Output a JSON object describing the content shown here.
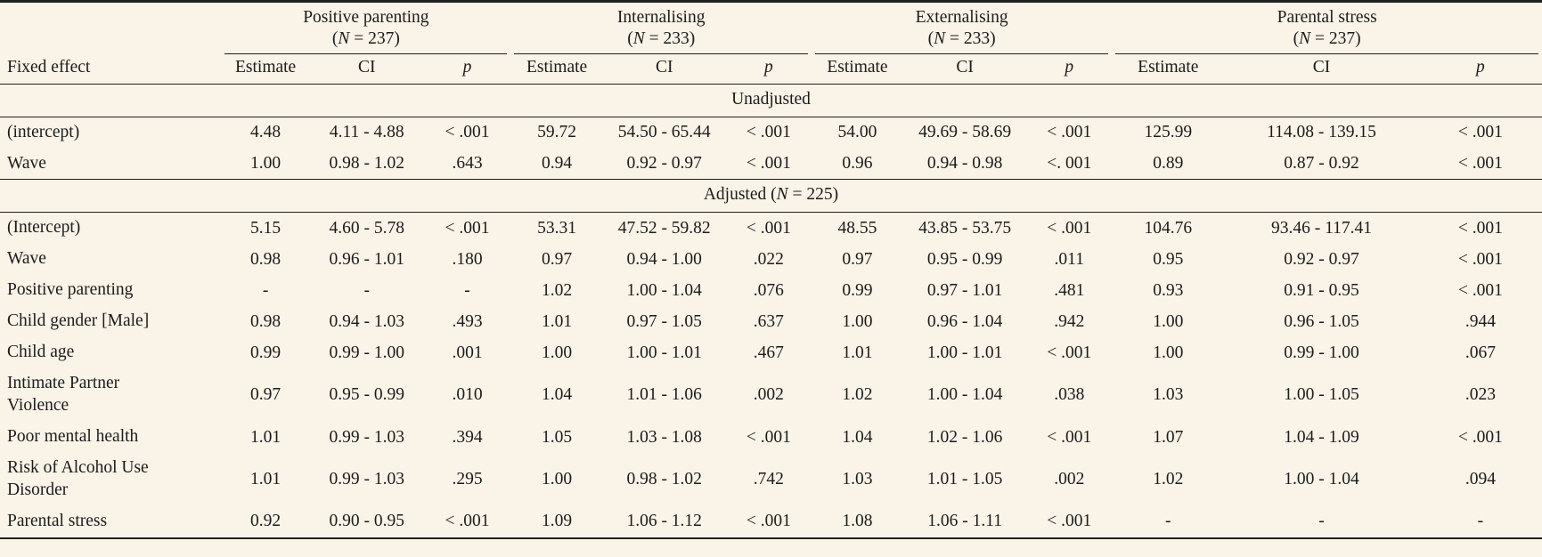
{
  "page": {
    "background_color": "#f9f3e8",
    "text_color": "#1c1c1c",
    "rule_color": "#1f1f1f"
  },
  "table": {
    "fixed_effect_header": "Fixed effect",
    "sub_headers": [
      "Estimate",
      "CI",
      "p"
    ],
    "col_groups": [
      {
        "label": "Positive parenting",
        "n": "(N = 237)"
      },
      {
        "label": "Internalising",
        "n": "(N = 233)"
      },
      {
        "label": "Externalising",
        "n": "(N = 233)"
      },
      {
        "label": "Parental stress",
        "n": "(N = 237)"
      }
    ],
    "sections": [
      {
        "title": "Unadjusted",
        "rows": [
          {
            "label": "(intercept)",
            "cells": [
              "4.48",
              "4.11 - 4.88",
              "< .001",
              "59.72",
              "54.50 - 65.44",
              "< .001",
              "54.00",
              "49.69 - 58.69",
              "< .001",
              "125.99",
              "114.08 - 139.15",
              "< .001"
            ]
          },
          {
            "label": "Wave",
            "cells": [
              "1.00",
              "0.98 - 1.02",
              ".643",
              "0.94",
              "0.92 - 0.97",
              "< .001",
              "0.96",
              "0.94 - 0.98",
              "<. 001",
              "0.89",
              "0.87 - 0.92",
              "< .001"
            ]
          }
        ]
      },
      {
        "title": "Adjusted (N = 225)",
        "rows": [
          {
            "label": "(Intercept)",
            "cells": [
              "5.15",
              "4.60 - 5.78",
              "< .001",
              "53.31",
              "47.52 - 59.82",
              "< .001",
              "48.55",
              "43.85 - 53.75",
              "< .001",
              "104.76",
              "93.46 - 117.41",
              "< .001"
            ]
          },
          {
            "label": "Wave",
            "cells": [
              "0.98",
              "0.96 - 1.01",
              ".180",
              "0.97",
              "0.94 - 1.00",
              ".022",
              "0.97",
              "0.95 - 0.99",
              ".011",
              "0.95",
              "0.92 - 0.97",
              "< .001"
            ]
          },
          {
            "label": "Positive parenting",
            "cells": [
              "-",
              "-",
              "-",
              "1.02",
              "1.00 - 1.04",
              ".076",
              "0.99",
              "0.97 - 1.01",
              ".481",
              "0.93",
              "0.91 - 0.95",
              "< .001"
            ]
          },
          {
            "label": "Child gender [Male]",
            "cells": [
              "0.98",
              "0.94 - 1.03",
              ".493",
              "1.01",
              "0.97 - 1.05",
              ".637",
              "1.00",
              "0.96 - 1.04",
              ".942",
              "1.00",
              "0.96 - 1.05",
              ".944"
            ]
          },
          {
            "label": "Child age",
            "cells": [
              "0.99",
              "0.99 - 1.00",
              ".001",
              "1.00",
              "1.00 - 1.01",
              ".467",
              "1.01",
              "1.00 - 1.01",
              "< .001",
              "1.00",
              "0.99 - 1.00",
              ".067"
            ]
          },
          {
            "label": "Intimate Partner Violence",
            "cells": [
              "0.97",
              "0.95 - 0.99",
              ".010",
              "1.04",
              "1.01 - 1.06",
              ".002",
              "1.02",
              "1.00 - 1.04",
              ".038",
              "1.03",
              "1.00 - 1.05",
              ".023"
            ]
          },
          {
            "label": "Poor mental health",
            "cells": [
              "1.01",
              "0.99 - 1.03",
              ".394",
              "1.05",
              "1.03 - 1.08",
              "< .001",
              "1.04",
              "1.02 - 1.06",
              "< .001",
              "1.07",
              "1.04 - 1.09",
              "< .001"
            ]
          },
          {
            "label": "Risk of Alcohol Use Disorder",
            "cells": [
              "1.01",
              "0.99 - 1.03",
              ".295",
              "1.00",
              "0.98 - 1.02",
              ".742",
              "1.03",
              "1.01 - 1.05",
              ".002",
              "1.02",
              "1.00 - 1.04",
              ".094"
            ]
          },
          {
            "label": "Parental stress",
            "cells": [
              "0.92",
              "0.90 - 0.95",
              "< .001",
              "1.09",
              "1.06 - 1.12",
              "< .001",
              "1.08",
              "1.06 - 1.11",
              "< .001",
              "-",
              "-",
              "-"
            ]
          }
        ]
      }
    ]
  }
}
